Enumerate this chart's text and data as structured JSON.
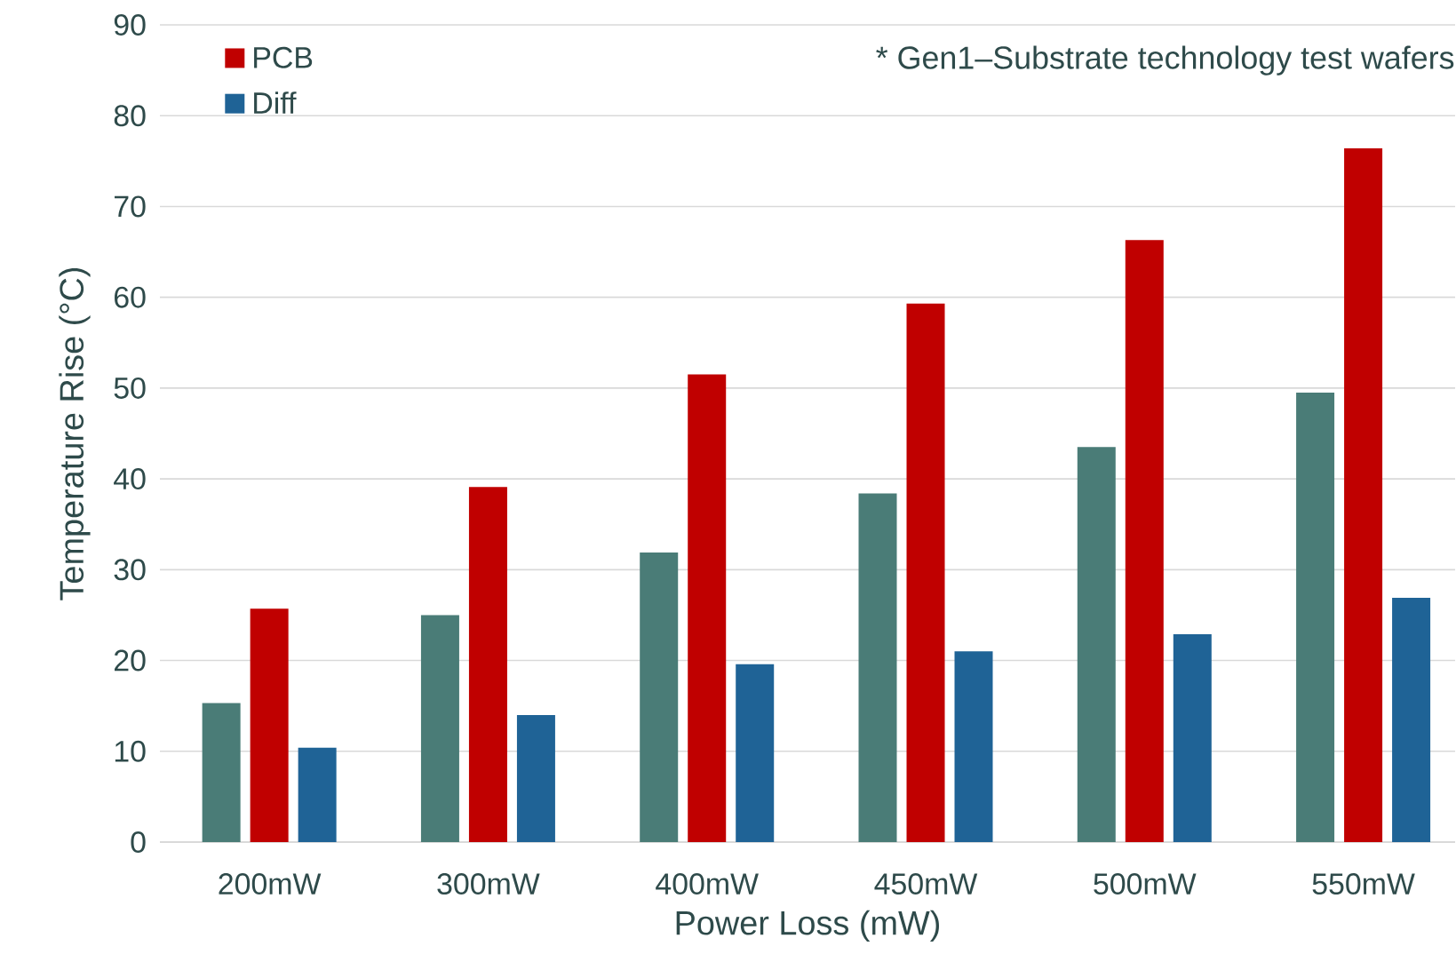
{
  "chart_data": {
    "type": "bar",
    "xlabel": "Power Loss (mW)",
    "ylabel": "Temperature Rise (°C)",
    "categories": [
      "200mW",
      "300mW",
      "400mW",
      "450mW",
      "500mW",
      "550mW"
    ],
    "series": [
      {
        "color": "#4a7c77",
        "values": [
          15.3,
          25.0,
          31.9,
          38.4,
          43.5,
          49.5
        ]
      },
      {
        "name": "PCB",
        "color": "#c00000",
        "values": [
          25.7,
          39.1,
          51.5,
          59.3,
          66.3,
          76.4
        ]
      },
      {
        "name": "Diff",
        "color": "#1f6396",
        "values": [
          10.4,
          14.0,
          19.6,
          21.0,
          22.9,
          26.9
        ]
      }
    ],
    "ylim": [
      0,
      90
    ],
    "yticks": [
      0,
      10,
      20,
      30,
      40,
      50,
      60,
      70,
      80,
      90
    ],
    "grid": "y",
    "legend": "top left",
    "annotations": [
      "* Gen1–Substrate technology test wafers"
    ]
  }
}
